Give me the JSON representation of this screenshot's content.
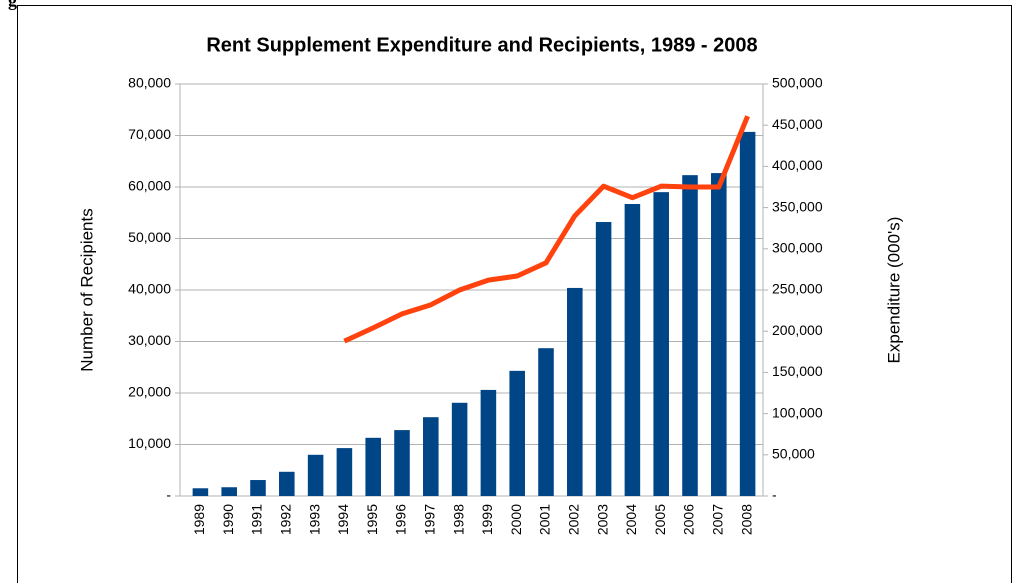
{
  "header_fragment": "g",
  "chart_data": {
    "type": "bar_line",
    "title": "Rent Supplement Expenditure and Recipients, 1989 - 2008",
    "ylabel": "Number of Recipients",
    "y2label": "Expenditure (000's)",
    "categories": [
      "1989",
      "1990",
      "1991",
      "1992",
      "1993",
      "1994",
      "1995",
      "1996",
      "1997",
      "1998",
      "1999",
      "2000",
      "2001",
      "2002",
      "2003",
      "2004",
      "2005",
      "2006",
      "2007",
      "2008"
    ],
    "series": [
      {
        "type": "bar",
        "color": "#004586",
        "axis": "y",
        "values": [
          1500,
          1700,
          3100,
          4700,
          8000,
          9300,
          11300,
          12800,
          15300,
          18100,
          20600,
          24300,
          28700,
          40400,
          53200,
          56700,
          59000,
          62300,
          62700,
          70700
        ]
      },
      {
        "type": "line",
        "color": "#ff420e",
        "axis": "y2",
        "values": [
          null,
          null,
          null,
          null,
          null,
          188000,
          204000,
          221000,
          232000,
          250000,
          262000,
          267000,
          283000,
          340000,
          376000,
          362000,
          376000,
          375000,
          375000,
          461000
        ]
      }
    ],
    "ylim": [
      0,
      80000
    ],
    "yticks": [
      {
        "value": 0,
        "label": "-"
      },
      {
        "value": 10000,
        "label": "10,000"
      },
      {
        "value": 20000,
        "label": "20,000"
      },
      {
        "value": 30000,
        "label": "30,000"
      },
      {
        "value": 40000,
        "label": "40,000"
      },
      {
        "value": 50000,
        "label": "50,000"
      },
      {
        "value": 60000,
        "label": "60,000"
      },
      {
        "value": 70000,
        "label": "70,000"
      },
      {
        "value": 80000,
        "label": "80,000"
      }
    ],
    "y2lim": [
      0,
      500000
    ],
    "y2ticks": [
      {
        "value": 0,
        "label": "-"
      },
      {
        "value": 50000,
        "label": "50,000"
      },
      {
        "value": 100000,
        "label": "100,000"
      },
      {
        "value": 150000,
        "label": "150,000"
      },
      {
        "value": 200000,
        "label": "200,000"
      },
      {
        "value": 250000,
        "label": "250,000"
      },
      {
        "value": 300000,
        "label": "300,000"
      },
      {
        "value": 350000,
        "label": "350,000"
      },
      {
        "value": 400000,
        "label": "400,000"
      },
      {
        "value": 450000,
        "label": "450,000"
      },
      {
        "value": 500000,
        "label": "500,000"
      }
    ],
    "grid": true
  }
}
